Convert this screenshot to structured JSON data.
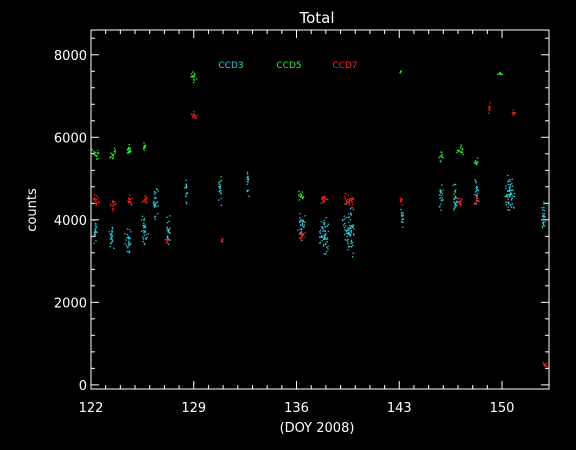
{
  "chart_data": {
    "type": "scatter",
    "title": "Total",
    "xlabel": "(DOY 2008)",
    "ylabel": "counts",
    "xlim": [
      122,
      153.2
    ],
    "ylim": [
      -100,
      8600
    ],
    "xticks": [
      122,
      129,
      136,
      143,
      150
    ],
    "yticks": [
      0,
      2000,
      4000,
      6000,
      8000
    ],
    "grid": false,
    "legend_position": "top-center",
    "series": [
      {
        "name": "CCD3",
        "color": "#33ccdd",
        "clusters": [
          {
            "x": [
              122.0,
              122.5
            ],
            "y": [
              3300,
              4100
            ]
          },
          {
            "x": [
              123.1,
              123.6
            ],
            "y": [
              3200,
              4000
            ]
          },
          {
            "x": [
              124.2,
              124.8
            ],
            "y": [
              3100,
              3900
            ]
          },
          {
            "x": [
              125.3,
              125.9
            ],
            "y": [
              3200,
              4200
            ]
          },
          {
            "x": [
              126.1,
              126.6
            ],
            "y": [
              4000,
              5000
            ]
          },
          {
            "x": [
              127.0,
              127.4
            ],
            "y": [
              3300,
              4300
            ]
          },
          {
            "x": [
              128.3,
              128.6
            ],
            "y": [
              4200,
              5200
            ]
          },
          {
            "x": [
              130.6,
              130.9
            ],
            "y": [
              4300,
              5300
            ]
          },
          {
            "x": [
              132.5,
              132.8
            ],
            "y": [
              4500,
              5400
            ]
          },
          {
            "x": [
              136.0,
              136.6
            ],
            "y": [
              3300,
              4400
            ]
          },
          {
            "x": [
              137.4,
              138.3
            ],
            "y": [
              3000,
              4300
            ]
          },
          {
            "x": [
              139.0,
              140.1
            ],
            "y": [
              3000,
              4500
            ]
          },
          {
            "x": [
              143.0,
              143.3
            ],
            "y": [
              3700,
              4400
            ]
          },
          {
            "x": [
              145.6,
              146.0
            ],
            "y": [
              4000,
              5000
            ]
          },
          {
            "x": [
              146.5,
              147.0
            ],
            "y": [
              4000,
              5000
            ]
          },
          {
            "x": [
              148.0,
              148.4
            ],
            "y": [
              4200,
              5100
            ]
          },
          {
            "x": [
              150.0,
              151.0
            ],
            "y": [
              4000,
              5300
            ]
          },
          {
            "x": [
              152.6,
              153.0
            ],
            "y": [
              3500,
              4600
            ]
          }
        ]
      },
      {
        "name": "CCD5",
        "color": "#33ee33",
        "clusters": [
          {
            "x": [
              122.0,
              122.6
            ],
            "y": [
              5400,
              5800
            ]
          },
          {
            "x": [
              123.2,
              123.7
            ],
            "y": [
              5400,
              5800
            ]
          },
          {
            "x": [
              124.3,
              124.8
            ],
            "y": [
              5500,
              5900
            ]
          },
          {
            "x": [
              125.4,
              125.8
            ],
            "y": [
              5600,
              5900
            ]
          },
          {
            "x": [
              128.7,
              129.2
            ],
            "y": [
              7300,
              7700
            ]
          },
          {
            "x": [
              136.0,
              136.6
            ],
            "y": [
              4400,
              4800
            ]
          },
          {
            "x": [
              143.0,
              143.1
            ],
            "y": [
              7550,
              7650
            ]
          },
          {
            "x": [
              145.6,
              146.0
            ],
            "y": [
              5400,
              5700
            ]
          },
          {
            "x": [
              146.8,
              147.4
            ],
            "y": [
              5500,
              5900
            ]
          },
          {
            "x": [
              148.0,
              148.4
            ],
            "y": [
              5300,
              5600
            ]
          },
          {
            "x": [
              149.6,
              150.0
            ],
            "y": [
              7500,
              7600
            ]
          }
        ]
      },
      {
        "name": "CCD7",
        "color": "#ff2222",
        "clusters": [
          {
            "x": [
              122.0,
              122.6
            ],
            "y": [
              4300,
              4700
            ]
          },
          {
            "x": [
              123.2,
              123.8
            ],
            "y": [
              4200,
              4600
            ]
          },
          {
            "x": [
              124.3,
              124.9
            ],
            "y": [
              4300,
              4700
            ]
          },
          {
            "x": [
              125.4,
              125.9
            ],
            "y": [
              4300,
              4700
            ]
          },
          {
            "x": [
              127.0,
              127.3
            ],
            "y": [
              3400,
              3600
            ]
          },
          {
            "x": [
              128.7,
              129.3
            ],
            "y": [
              6400,
              6700
            ]
          },
          {
            "x": [
              130.8,
              131.0
            ],
            "y": [
              3400,
              3600
            ]
          },
          {
            "x": [
              136.0,
              136.6
            ],
            "y": [
              3500,
              3800
            ]
          },
          {
            "x": [
              137.4,
              138.2
            ],
            "y": [
              4300,
              4700
            ]
          },
          {
            "x": [
              139.0,
              140.1
            ],
            "y": [
              4300,
              4700
            ]
          },
          {
            "x": [
              143.0,
              143.2
            ],
            "y": [
              4300,
              4600
            ]
          },
          {
            "x": [
              146.8,
              147.4
            ],
            "y": [
              4300,
              4600
            ]
          },
          {
            "x": [
              148.0,
              148.4
            ],
            "y": [
              4300,
              4700
            ]
          },
          {
            "x": [
              149.0,
              149.2
            ],
            "y": [
              6500,
              6900
            ]
          },
          {
            "x": [
              150.6,
              150.9
            ],
            "y": [
              6500,
              6700
            ]
          },
          {
            "x": [
              152.7,
              153.1
            ],
            "y": [
              400,
              600
            ]
          }
        ]
      }
    ]
  }
}
